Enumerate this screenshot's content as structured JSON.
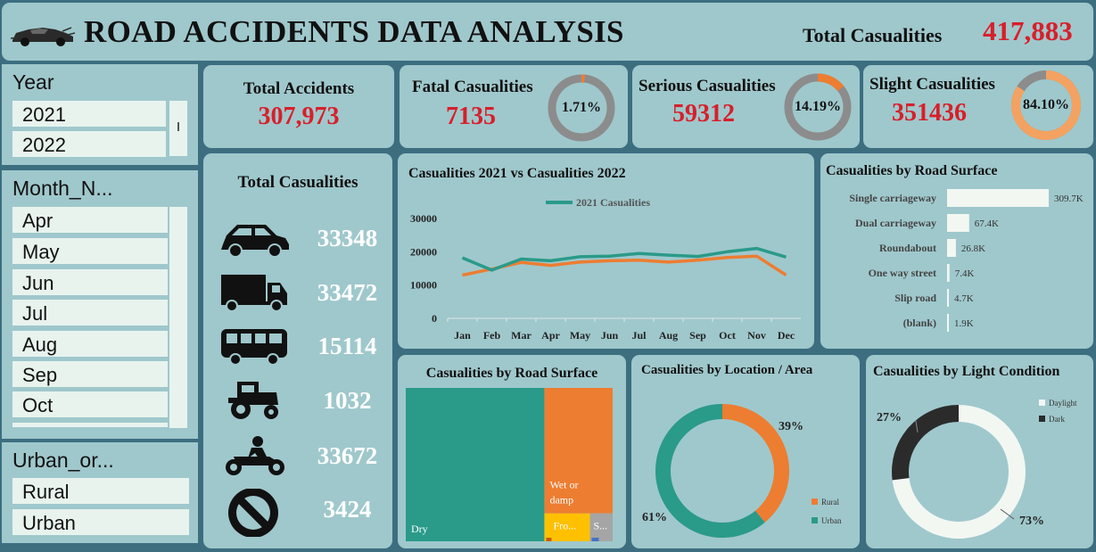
{
  "header": {
    "title": "ROAD ACCIDENTS DATA ANALYSIS",
    "total_label": "Total Casualities",
    "total_value": "417,883",
    "logo_icon": "car-logo-icon"
  },
  "slicers": {
    "year": {
      "title": "Year",
      "items": [
        "2021",
        "2022"
      ]
    },
    "month": {
      "title": "Month_N...",
      "items": [
        "Apr",
        "May",
        "Jun",
        "Jul",
        "Aug",
        "Sep",
        "Oct"
      ]
    },
    "urban": {
      "title": "Urban_or...",
      "items": [
        "Rural",
        "Urban"
      ]
    }
  },
  "kpis": {
    "accidents": {
      "label": "Total Accidents",
      "value": "307,973"
    },
    "fatal": {
      "label": "Fatal Casualities",
      "value": "7135",
      "pct": "1.71%",
      "fraction": 0.0171
    },
    "serious": {
      "label": "Serious Casualities",
      "value": "59312",
      "pct": "14.19%",
      "fraction": 0.1419
    },
    "slight": {
      "label": "Slight Casualities",
      "value": "351436",
      "pct": "84.10%",
      "fraction": 0.841
    }
  },
  "colors": {
    "accent_red": "#d81f2a",
    "teal": "#2a9a89",
    "orange": "#ed7d31",
    "grey": "#8c8c8c",
    "card": "#9fc8cc",
    "background": "#3c6e80"
  },
  "vehicles": {
    "title": "Total Casualities",
    "items": [
      {
        "icon": "car-icon",
        "value": "33348"
      },
      {
        "icon": "truck-icon",
        "value": "33472"
      },
      {
        "icon": "bus-icon",
        "value": "15114"
      },
      {
        "icon": "tractor-icon",
        "value": "1032"
      },
      {
        "icon": "motorcycle-icon",
        "value": "33672"
      },
      {
        "icon": "no-entry-icon",
        "value": "3424"
      }
    ]
  },
  "chart_data": [
    {
      "type": "line",
      "title": "Casualities 2021 vs Casualities 2022",
      "categories": [
        "Jan",
        "Feb",
        "Mar",
        "Apr",
        "May",
        "Jun",
        "Jul",
        "Aug",
        "Sep",
        "Oct",
        "Nov",
        "Dec"
      ],
      "y_ticks": [
        "0",
        "10000",
        "20000",
        "30000"
      ],
      "ylim": [
        0,
        30000
      ],
      "legend_label": "2021 Casualities",
      "legend_position": "top",
      "series": [
        {
          "name": "2021 Casualities",
          "color": "#2a9a89",
          "values": [
            18200,
            14500,
            17800,
            17300,
            18500,
            18700,
            19500,
            19000,
            18600,
            20000,
            21000,
            18400
          ]
        },
        {
          "color": "#ed7d31",
          "values": [
            13000,
            14800,
            16800,
            15900,
            16900,
            17300,
            17500,
            16900,
            17500,
            18300,
            18700,
            13000
          ]
        }
      ]
    },
    {
      "type": "bar",
      "orientation": "horizontal",
      "title": "Casualities by Road Surface",
      "categories": [
        "Single carriageway",
        "Dual carriageway",
        "Roundabout",
        "One way street",
        "Slip road",
        "(blank)"
      ],
      "values": [
        309700,
        67400,
        26800,
        7400,
        4700,
        1900
      ],
      "labels": [
        "309.7K",
        "67.4K",
        "26.8K",
        "7.4K",
        "4.7K",
        "1.9K"
      ]
    },
    {
      "type": "treemap",
      "title": "Casualities by Road Surface",
      "items": [
        {
          "label": "Dry",
          "color": "#2a9a89",
          "value": 0.67
        },
        {
          "label": "Wet or damp",
          "color": "#ed7d31",
          "value": 0.27
        },
        {
          "label": "Fro...",
          "color": "#ffc000",
          "value": 0.04
        },
        {
          "label": "S...",
          "color": "#a5a5a5",
          "value": 0.02
        }
      ]
    },
    {
      "type": "pie",
      "donut": true,
      "title": "Casualities by Location / Area",
      "slices": [
        {
          "label": "Rural",
          "value": 39,
          "pct_label": "39%",
          "color": "#ed7d31"
        },
        {
          "label": "Urban",
          "value": 61,
          "pct_label": "61%",
          "color": "#2a9a89"
        }
      ],
      "legend_position": "bottom-right"
    },
    {
      "type": "pie",
      "donut": true,
      "title": "Casualities by Light Condition",
      "slices": [
        {
          "label": "Daylight",
          "value": 73,
          "pct_label": "73%",
          "color": "#f2f7f2"
        },
        {
          "label": "Dark",
          "value": 27,
          "pct_label": "27%",
          "color": "#2b2b2b"
        }
      ],
      "legend_position": "top-right"
    }
  ]
}
